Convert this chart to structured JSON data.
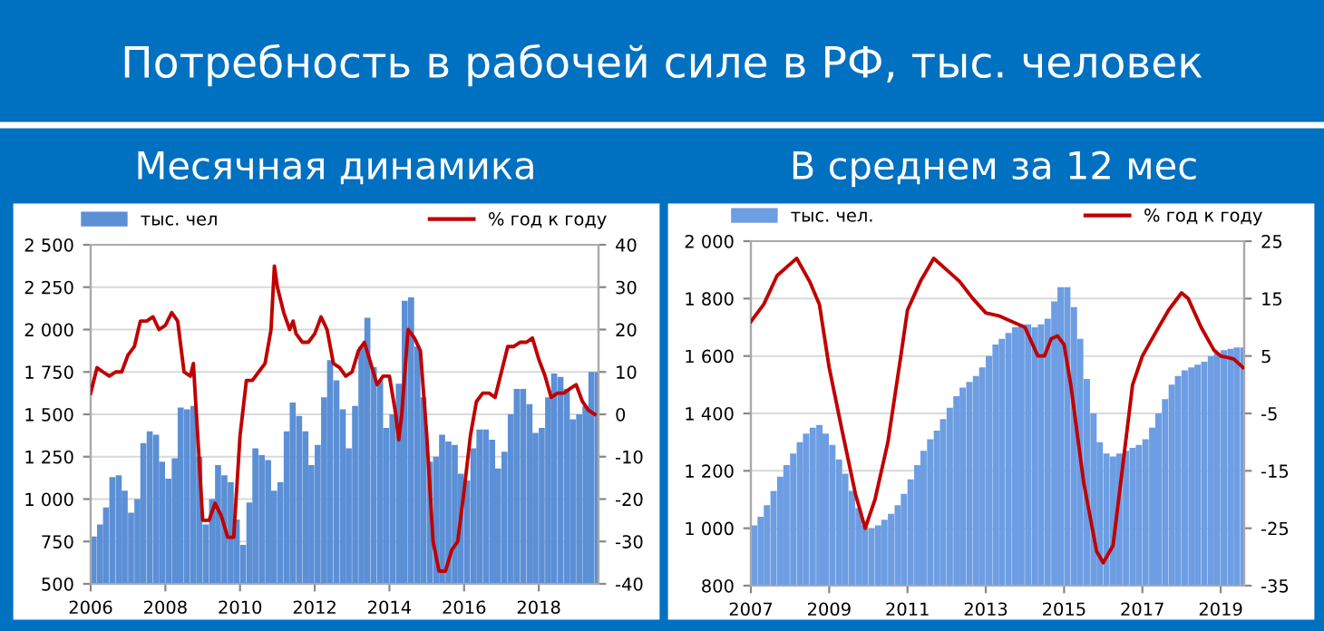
{
  "chart_data": [
    {
      "type": "bar",
      "title": "Потребность в рабочей силе в РФ, тыс. человек",
      "subtitle": "Месячная динамика",
      "grid": "y",
      "legend": "top",
      "xlim": [
        2006,
        2019.6
      ],
      "xticks": [
        2006,
        2008,
        2010,
        2012,
        2014,
        2016,
        2018
      ],
      "ylim": [
        500,
        2500
      ],
      "yticks": [
        {
          "value": 500,
          "label": "500"
        },
        {
          "value": 750,
          "label": "750"
        },
        {
          "value": 1000,
          "label": "1 000"
        },
        {
          "value": 1250,
          "label": "1 250"
        },
        {
          "value": 1500,
          "label": "1 500"
        },
        {
          "value": 1750,
          "label": "1 750"
        },
        {
          "value": 2000,
          "label": "2 000"
        },
        {
          "value": 2250,
          "label": "2 250"
        },
        {
          "value": 2500,
          "label": "2 500"
        }
      ],
      "y2lim": [
        -40,
        40
      ],
      "y2ticks": [
        -40,
        -30,
        -20,
        -10,
        0,
        10,
        20,
        30,
        40
      ],
      "series": [
        {
          "name": "тыс. чел",
          "color": "#5b8fd6",
          "x": [
            2006.0,
            2006.17,
            2006.33,
            2006.5,
            2006.67,
            2006.83,
            2007.0,
            2007.17,
            2007.33,
            2007.5,
            2007.67,
            2007.83,
            2008.0,
            2008.17,
            2008.33,
            2008.5,
            2008.67,
            2008.83,
            2009.0,
            2009.17,
            2009.33,
            2009.5,
            2009.67,
            2009.83,
            2010.0,
            2010.17,
            2010.33,
            2010.5,
            2010.67,
            2010.83,
            2011.0,
            2011.17,
            2011.33,
            2011.5,
            2011.67,
            2011.83,
            2012.0,
            2012.17,
            2012.33,
            2012.5,
            2012.67,
            2012.83,
            2013.0,
            2013.17,
            2013.33,
            2013.5,
            2013.67,
            2013.83,
            2014.0,
            2014.17,
            2014.33,
            2014.5,
            2014.67,
            2014.83,
            2015.0,
            2015.17,
            2015.33,
            2015.5,
            2015.67,
            2015.83,
            2016.0,
            2016.17,
            2016.33,
            2016.5,
            2016.67,
            2016.83,
            2017.0,
            2017.17,
            2017.33,
            2017.5,
            2017.67,
            2017.83,
            2018.0,
            2018.17,
            2018.33,
            2018.5,
            2018.67,
            2018.83,
            2019.0,
            2019.17,
            2019.33,
            2019.5
          ],
          "values": [
            780,
            850,
            950,
            1130,
            1140,
            1050,
            920,
            1000,
            1330,
            1400,
            1380,
            1220,
            1120,
            1240,
            1540,
            1530,
            1550,
            1250,
            850,
            1000,
            1200,
            1140,
            1100,
            880,
            730,
            980,
            1300,
            1260,
            1230,
            1050,
            1100,
            1400,
            1570,
            1490,
            1400,
            1200,
            1320,
            1600,
            1820,
            1700,
            1530,
            1300,
            1550,
            1900,
            2070,
            1780,
            1700,
            1420,
            1500,
            1680,
            2170,
            2190,
            1900,
            1600,
            1220,
            1250,
            1380,
            1340,
            1320,
            1150,
            1110,
            1300,
            1410,
            1410,
            1350,
            1180,
            1280,
            1500,
            1650,
            1650,
            1560,
            1390,
            1420,
            1600,
            1740,
            1720,
            1650,
            1470,
            1500,
            1550,
            1750,
            1750
          ]
        },
        {
          "name": "% год к году",
          "type": "line",
          "axis": "y2",
          "color": "#c00000",
          "x": [
            2006.0,
            2006.17,
            2006.33,
            2006.5,
            2006.67,
            2006.83,
            2007.0,
            2007.17,
            2007.33,
            2007.5,
            2007.67,
            2007.83,
            2008.0,
            2008.17,
            2008.33,
            2008.5,
            2008.67,
            2008.75,
            2008.9,
            2009.0,
            2009.17,
            2009.33,
            2009.5,
            2009.67,
            2009.83,
            2010.0,
            2010.17,
            2010.33,
            2010.5,
            2010.67,
            2010.83,
            2010.92,
            2011.0,
            2011.17,
            2011.33,
            2011.42,
            2011.5,
            2011.67,
            2011.83,
            2012.0,
            2012.17,
            2012.33,
            2012.5,
            2012.67,
            2012.83,
            2013.0,
            2013.17,
            2013.33,
            2013.5,
            2013.67,
            2013.83,
            2014.0,
            2014.17,
            2014.25,
            2014.33,
            2014.5,
            2014.67,
            2014.83,
            2015.0,
            2015.17,
            2015.33,
            2015.5,
            2015.67,
            2015.83,
            2016.0,
            2016.17,
            2016.33,
            2016.5,
            2016.67,
            2016.83,
            2017.0,
            2017.17,
            2017.33,
            2017.5,
            2017.67,
            2017.83,
            2018.0,
            2018.17,
            2018.33,
            2018.5,
            2018.67,
            2018.83,
            2019.0,
            2019.17,
            2019.33,
            2019.5
          ],
          "values": [
            5,
            11,
            10,
            9,
            10,
            10,
            14,
            16,
            22,
            22,
            23,
            20,
            21,
            24,
            22,
            10,
            9,
            12,
            -10,
            -25,
            -25,
            -21,
            -24,
            -29,
            -29,
            -5,
            8,
            8,
            10,
            12,
            20,
            35,
            30,
            24,
            20,
            22,
            19,
            17,
            17,
            19,
            23,
            20,
            12,
            11,
            9,
            10,
            15,
            17,
            12,
            7,
            9,
            9,
            0,
            -6,
            0,
            20,
            18,
            15,
            -5,
            -30,
            -37,
            -37,
            -32,
            -30,
            -18,
            -5,
            3,
            5,
            5,
            4,
            10,
            16,
            16,
            17,
            17,
            18,
            13,
            9,
            4,
            5,
            5,
            6,
            7,
            3,
            1,
            0
          ]
        }
      ]
    },
    {
      "type": "bar",
      "subtitle": "В среднем за 12 мес",
      "grid": "y",
      "legend": "top",
      "xlim": [
        2007,
        2019.6
      ],
      "xticks": [
        2007,
        2009,
        2011,
        2013,
        2015,
        2017,
        2019
      ],
      "ylim": [
        800,
        2000
      ],
      "yticks": [
        {
          "value": 800,
          "label": "800"
        },
        {
          "value": 1000,
          "label": "1 000"
        },
        {
          "value": 1200,
          "label": "1 200"
        },
        {
          "value": 1400,
          "label": "1 400"
        },
        {
          "value": 1600,
          "label": "1 600"
        },
        {
          "value": 1800,
          "label": "1 800"
        },
        {
          "value": 2000,
          "label": "2 000"
        }
      ],
      "y2lim": [
        -35,
        25
      ],
      "y2ticks": [
        -35,
        -25,
        -15,
        -5,
        5,
        15,
        25
      ],
      "series": [
        {
          "name": "тыс. чел.",
          "color": "#6d9de2",
          "x": [
            2007.0,
            2007.17,
            2007.33,
            2007.5,
            2007.67,
            2007.83,
            2008.0,
            2008.17,
            2008.33,
            2008.5,
            2008.67,
            2008.83,
            2009.0,
            2009.17,
            2009.33,
            2009.5,
            2009.67,
            2009.83,
            2010.0,
            2010.17,
            2010.33,
            2010.5,
            2010.67,
            2010.83,
            2011.0,
            2011.17,
            2011.33,
            2011.5,
            2011.67,
            2011.83,
            2012.0,
            2012.17,
            2012.33,
            2012.5,
            2012.67,
            2012.83,
            2013.0,
            2013.17,
            2013.33,
            2013.5,
            2013.67,
            2013.83,
            2014.0,
            2014.17,
            2014.33,
            2014.5,
            2014.67,
            2014.83,
            2015.0,
            2015.17,
            2015.33,
            2015.5,
            2015.67,
            2015.83,
            2016.0,
            2016.17,
            2016.33,
            2016.5,
            2016.67,
            2016.83,
            2017.0,
            2017.17,
            2017.33,
            2017.5,
            2017.67,
            2017.83,
            2018.0,
            2018.17,
            2018.33,
            2018.5,
            2018.67,
            2018.83,
            2019.0,
            2019.17,
            2019.33,
            2019.5
          ],
          "values": [
            1010,
            1040,
            1080,
            1130,
            1180,
            1220,
            1260,
            1300,
            1330,
            1350,
            1360,
            1330,
            1290,
            1240,
            1190,
            1130,
            1070,
            1010,
            1000,
            1010,
            1030,
            1050,
            1080,
            1120,
            1170,
            1220,
            1270,
            1310,
            1340,
            1380,
            1420,
            1460,
            1490,
            1510,
            1530,
            1560,
            1600,
            1640,
            1660,
            1680,
            1700,
            1710,
            1710,
            1700,
            1710,
            1730,
            1790,
            1840,
            1840,
            1770,
            1660,
            1520,
            1400,
            1300,
            1260,
            1250,
            1260,
            1270,
            1280,
            1290,
            1310,
            1350,
            1400,
            1450,
            1500,
            1530,
            1550,
            1560,
            1570,
            1580,
            1600,
            1610,
            1620,
            1625,
            1630,
            1630
          ]
        },
        {
          "name": "% год к году",
          "type": "line",
          "axis": "y2",
          "color": "#c00000",
          "x": [
            2007.0,
            2007.33,
            2007.67,
            2008.0,
            2008.17,
            2008.5,
            2008.75,
            2009.0,
            2009.33,
            2009.67,
            2009.92,
            2010.17,
            2010.5,
            2010.83,
            2011.0,
            2011.33,
            2011.67,
            2012.0,
            2012.33,
            2012.67,
            2013.0,
            2013.33,
            2013.67,
            2014.0,
            2014.33,
            2014.5,
            2014.67,
            2014.83,
            2015.0,
            2015.17,
            2015.5,
            2015.83,
            2016.0,
            2016.25,
            2016.5,
            2016.75,
            2017.0,
            2017.33,
            2017.67,
            2018.0,
            2018.17,
            2018.5,
            2018.83,
            2019.0,
            2019.33,
            2019.57
          ],
          "values": [
            11,
            14,
            19,
            21,
            22,
            18,
            14,
            3,
            -8,
            -19,
            -25,
            -20,
            -10,
            5,
            13,
            18,
            22,
            20,
            18,
            15,
            12.5,
            12,
            11,
            10,
            5,
            5,
            8,
            8.5,
            7,
            0,
            -17,
            -29,
            -31,
            -28,
            -14,
            0,
            5,
            9,
            13,
            16,
            15,
            10,
            6,
            5,
            4.5,
            3
          ]
        }
      ]
    }
  ]
}
